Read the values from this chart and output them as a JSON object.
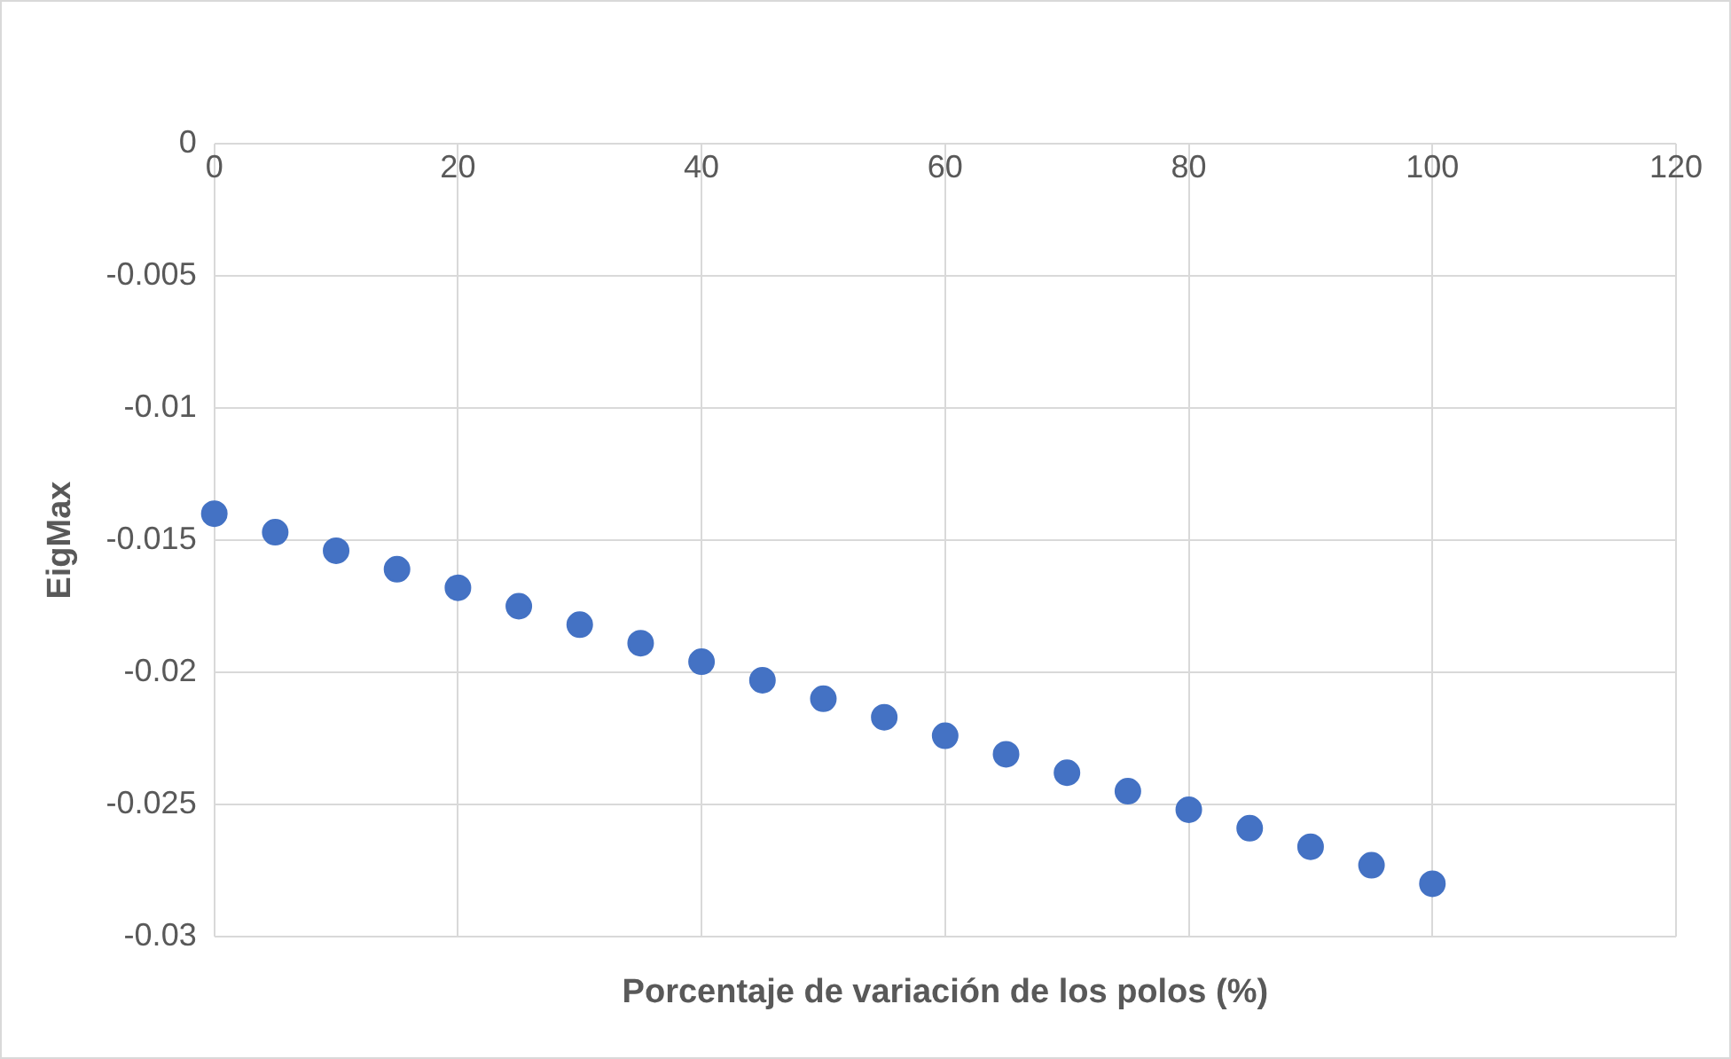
{
  "chart_data": {
    "type": "scatter",
    "xlabel": "Porcentaje de variación de los polos (%)",
    "ylabel": "EigMax",
    "x": [
      0,
      5,
      10,
      15,
      20,
      25,
      30,
      35,
      40,
      45,
      50,
      55,
      60,
      65,
      70,
      75,
      80,
      85,
      90,
      95,
      100
    ],
    "series": [
      {
        "color": "#4472c4",
        "values": [
          -0.014,
          -0.0147,
          -0.0154,
          -0.0161,
          -0.0168,
          -0.0175,
          -0.0182,
          -0.0189,
          -0.0196,
          -0.0203,
          -0.021,
          -0.0217,
          -0.0224,
          -0.0231,
          -0.0238,
          -0.0245,
          -0.0252,
          -0.0259,
          -0.0266,
          -0.0273,
          -0.028
        ]
      }
    ],
    "xlim": [
      0,
      120
    ],
    "xticks": [
      0,
      20,
      40,
      60,
      80,
      100,
      120
    ],
    "ylim": [
      -0.03,
      0
    ],
    "yticks": [
      0,
      -0.005,
      -0.01,
      -0.015,
      -0.02,
      -0.025,
      -0.03
    ],
    "grid": true,
    "marker": "circle",
    "legend": false
  }
}
